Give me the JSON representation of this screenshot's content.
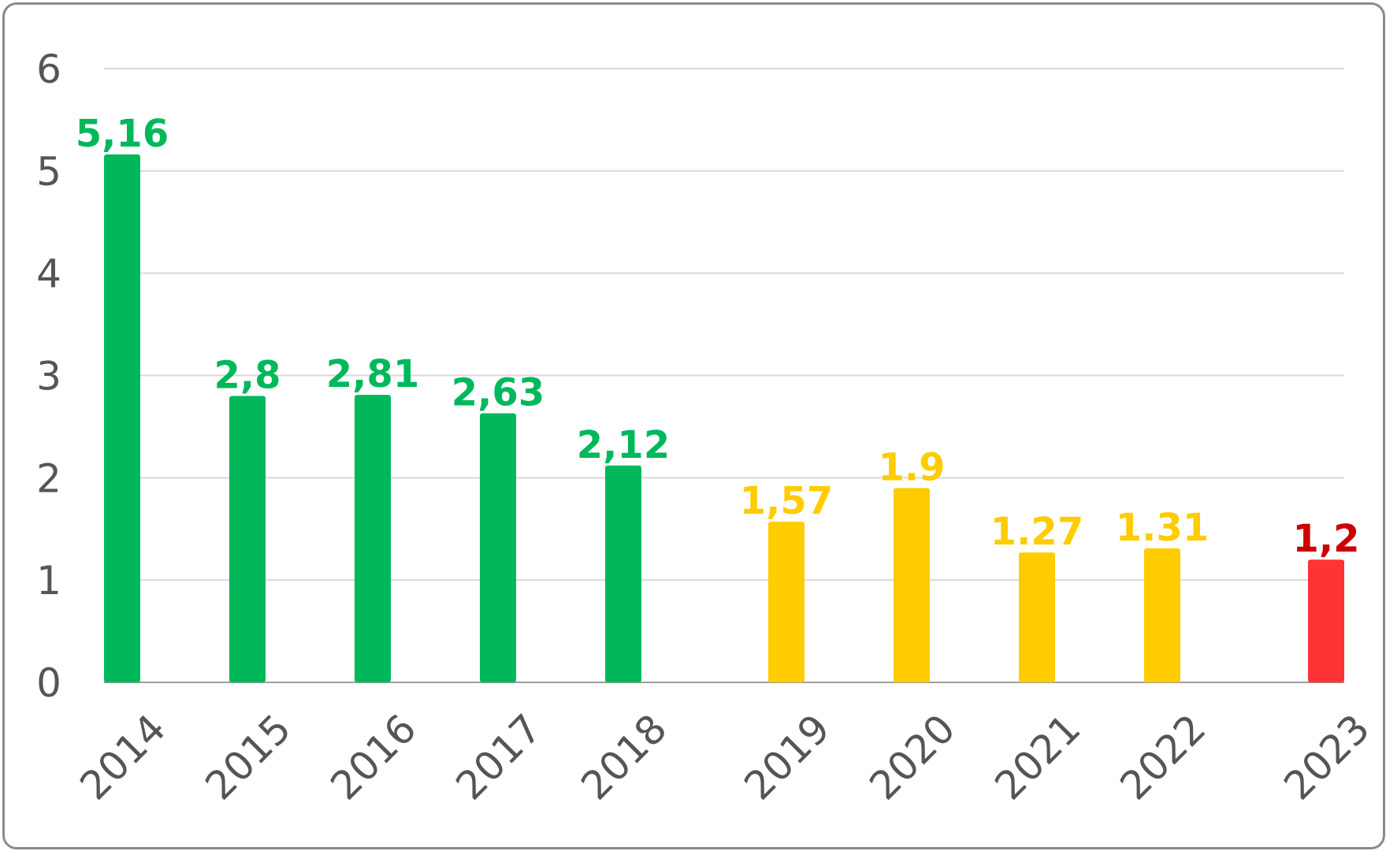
{
  "chart_data": {
    "type": "bar",
    "title": "",
    "xlabel": "",
    "ylabel": "",
    "ylim": [
      0,
      6
    ],
    "yticks": [
      "0",
      "1",
      "2",
      "3",
      "4",
      "5",
      "6"
    ],
    "grid": true,
    "categories": [
      "2014",
      "2015",
      "2016",
      "2017",
      "2018",
      "2019",
      "2020",
      "2021",
      "2022",
      "2023"
    ],
    "values": [
      5.16,
      2.8,
      2.81,
      2.63,
      2.12,
      1.57,
      1.9,
      1.27,
      1.31,
      1.2
    ],
    "data_labels": [
      "5,16",
      "2,8",
      "2,81",
      "2,63",
      "2,12",
      "1,57",
      "1.9",
      "1.27",
      "1.31",
      "1,2"
    ],
    "bar_colors": [
      "#00b85c",
      "#00b85c",
      "#00b85c",
      "#00b85c",
      "#00b85c",
      "#ffcc00",
      "#ffcc00",
      "#ffcc00",
      "#ffcc00",
      "#ff3333"
    ],
    "label_colors": [
      "#00b85c",
      "#00b85c",
      "#00b85c",
      "#00b85c",
      "#00b85c",
      "#ffcc00",
      "#ffcc00",
      "#ffcc00",
      "#ffcc00",
      "#cc0000"
    ],
    "gridline_color": "#d9d9d9",
    "axis_color": "#9e9e9e",
    "tick_color": "#555555"
  }
}
